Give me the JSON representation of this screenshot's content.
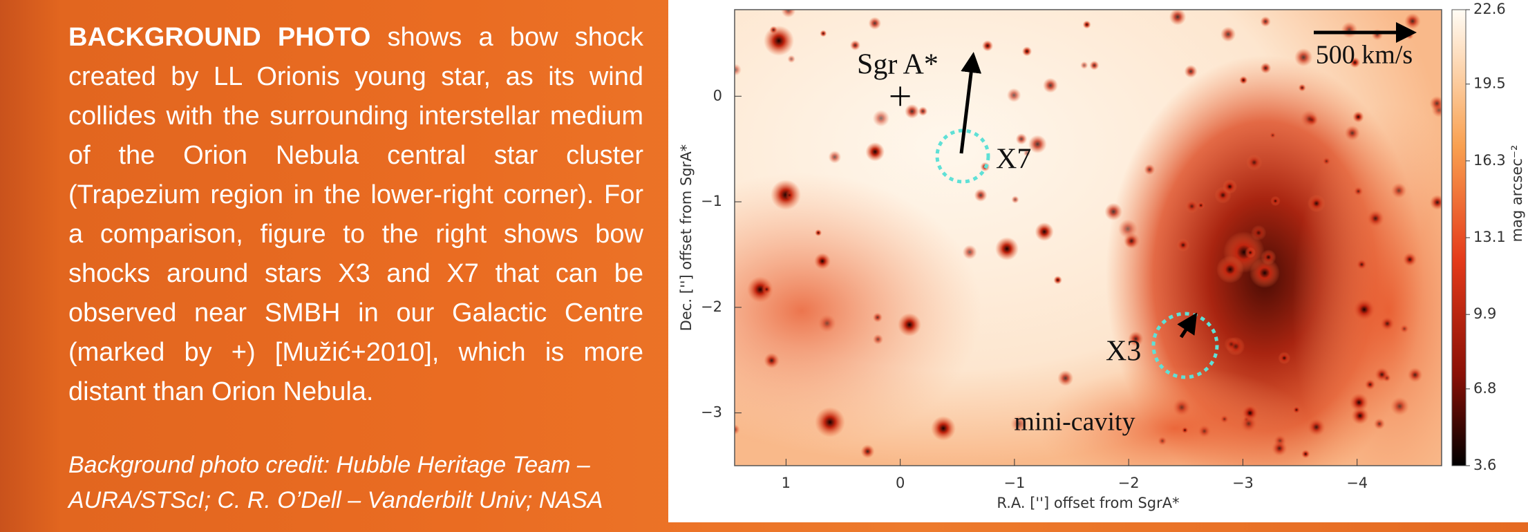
{
  "text": {
    "lead": "BACKGROUND PHOTO",
    "body": "shows a bow shock created by LL Orionis young star, as its wind collides with the surrounding interstellar medium of the Orion Nebula central star cluster (Trapezium region in the lower-right corner).  For a comparison, figure to the right shows bow shocks around stars X3 and X7 that can be observed near SMBH in our Galactic Centre (marked by +) [Mužić+2010], which is more distant than Orion Nebula.",
    "credit": [
      "Background photo credit: Hubble Heritage Team –",
      "AURA/STScI; C. R. O’Dell – Vanderbilt Univ; NASA"
    ]
  },
  "figure": {
    "xlabel": "R.A. [''] offset from SgrA*",
    "ylabel": "Dec. [''] offset from SgrA*",
    "xlim": [
      1.45,
      -4.74
    ],
    "ylim": [
      -3.5,
      0.82
    ],
    "xticks": [
      1,
      0,
      {
        "value": -1,
        "label": "−1"
      },
      {
        "value": -2,
        "label": "−2"
      },
      {
        "value": -3,
        "label": "−3"
      },
      {
        "value": -4,
        "label": "−4"
      }
    ],
    "yticks": [
      0,
      {
        "value": -1,
        "label": "−1"
      },
      {
        "value": -2,
        "label": "−2"
      },
      {
        "value": -3,
        "label": "−3"
      }
    ],
    "colorbar": {
      "label": "mag arcsec⁻²",
      "lim": [
        3.6,
        22.6
      ],
      "ticks": [
        22.6,
        19.5,
        16.3,
        13.1,
        9.9,
        6.8,
        3.6
      ]
    },
    "annotations": {
      "sgra": "Sgr A*",
      "x7": "X7",
      "x3": "X3",
      "scale": "500 km/s",
      "cavity": "mini-cavity"
    }
  }
}
